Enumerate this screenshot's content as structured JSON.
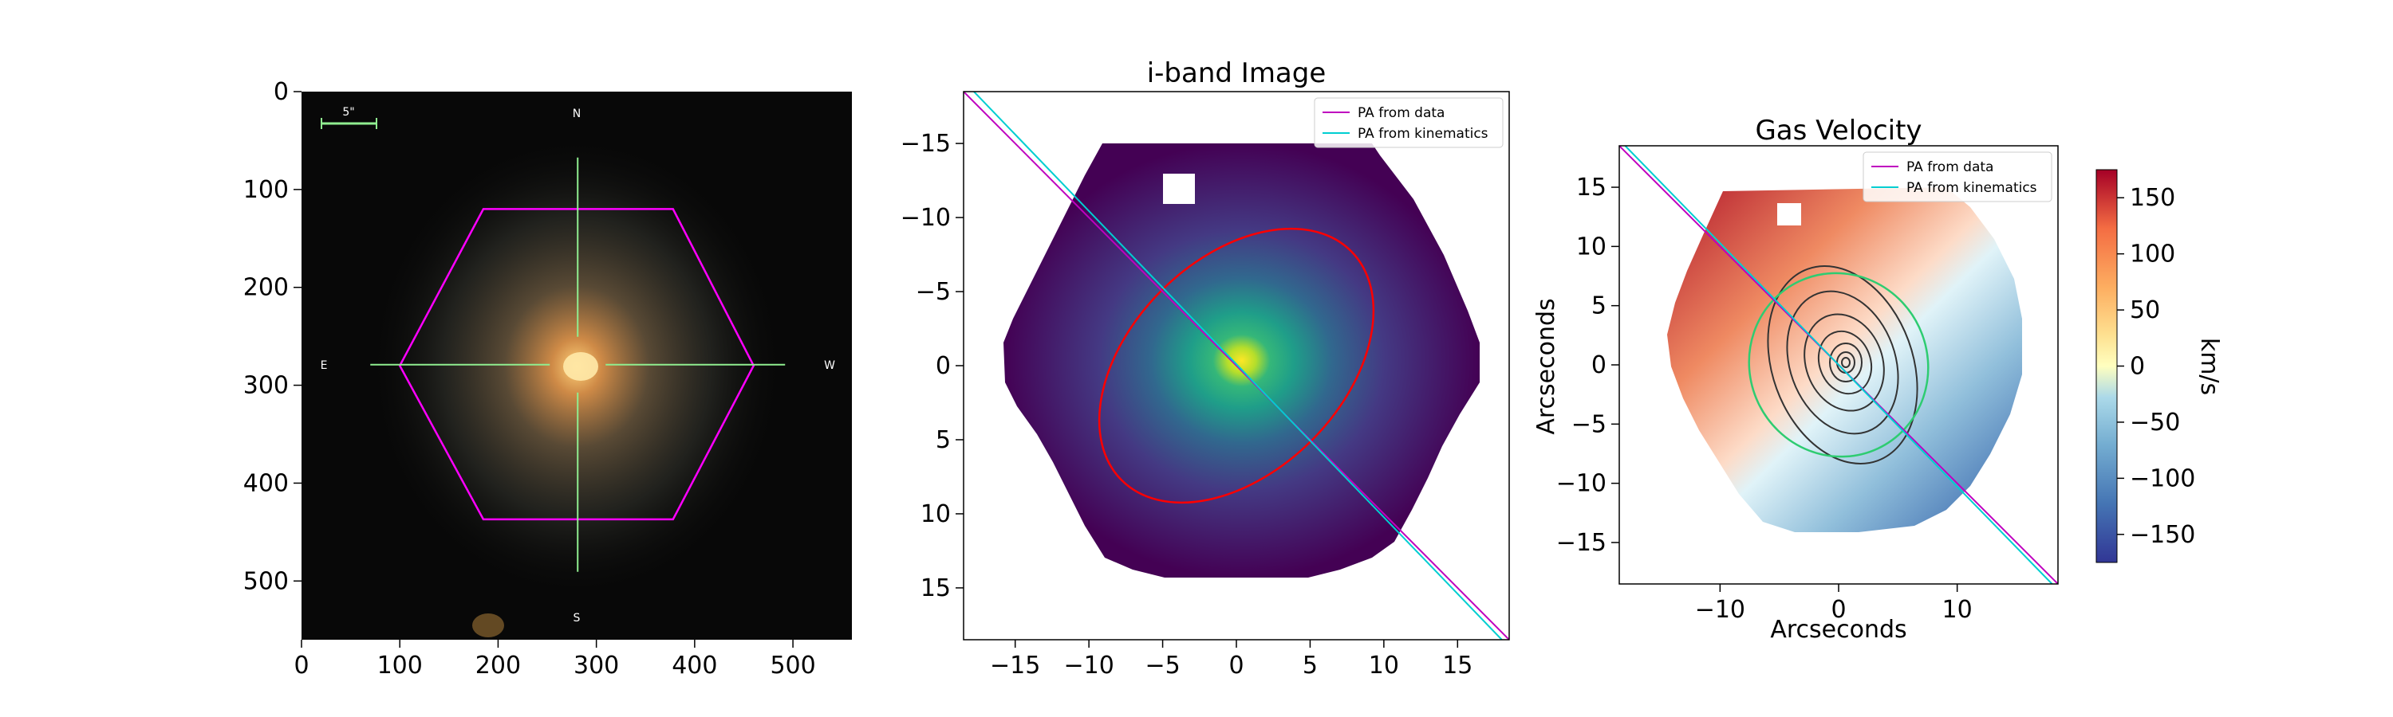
{
  "chart_data": [
    {
      "type": "image",
      "title": "",
      "xlabel": "",
      "ylabel": "",
      "xlim": [
        0,
        560
      ],
      "ylim": [
        560,
        0
      ],
      "xticks": [
        0,
        100,
        200,
        300,
        400,
        500
      ],
      "yticks": [
        0,
        100,
        200,
        300,
        400,
        500
      ],
      "scale_bar_label": "5\"",
      "compass": {
        "n": "N",
        "s": "S",
        "e": "E",
        "w": "W"
      },
      "hexagon_vertices": [
        [
          100,
          280
        ],
        [
          185,
          120
        ],
        [
          378,
          120
        ],
        [
          460,
          280
        ],
        [
          378,
          437
        ],
        [
          185,
          437
        ]
      ],
      "hexagon_color": "#ff00ff",
      "crosshair_center": [
        281,
        279
      ],
      "crosshair_color": "#90ee90"
    },
    {
      "type": "heatmap",
      "title": "i-band Image",
      "xlabel": "",
      "ylabel": "",
      "xlim": [
        -18.5,
        18.5
      ],
      "ylim": [
        -18.5,
        18.5
      ],
      "y_inverted": true,
      "xticks": [
        -15,
        -10,
        -5,
        0,
        5,
        10,
        15
      ],
      "yticks": [
        -15,
        -10,
        -5,
        0,
        5,
        10,
        15
      ],
      "colormap": "viridis",
      "ellipse": {
        "center": [
          0,
          0
        ],
        "semi_major": 11.0,
        "semi_minor": 7.2,
        "pa_deg": 45,
        "color": "#ff0000"
      },
      "lines": [
        {
          "name": "PA from data",
          "color": "#bf00bf",
          "x": [
            -18.5,
            18.5
          ],
          "y": [
            -18.5,
            18.5
          ]
        },
        {
          "name": "PA from kinematics",
          "color": "#00ced1",
          "x": [
            -17.8,
            18.0
          ],
          "y": [
            -18.5,
            18.5
          ]
        }
      ],
      "legend": {
        "loc": "upper right",
        "entries": [
          "PA from data",
          "PA from kinematics"
        ]
      }
    },
    {
      "type": "heatmap",
      "title": "Gas Velocity",
      "xlabel": "Arcseconds",
      "ylabel": "Arcseconds",
      "xlim": [
        -18.5,
        18.5
      ],
      "ylim": [
        -18.5,
        18.5
      ],
      "xticks": [
        -10,
        0,
        10
      ],
      "yticks": [
        -15,
        -10,
        -5,
        0,
        5,
        10,
        15
      ],
      "colormap": "RdYlBu_r",
      "colorbar": {
        "label": "km/s",
        "range": [
          -175,
          175
        ],
        "ticks": [
          -150,
          -100,
          -50,
          0,
          50,
          100,
          150
        ]
      },
      "ellipse": {
        "center": [
          0,
          0
        ],
        "semi_major": 7.8,
        "semi_minor": 7.5,
        "pa_deg": 10,
        "color": "#2ecc71"
      },
      "lines": [
        {
          "name": "PA from data",
          "color": "#bf00bf",
          "x": [
            -18.5,
            18.5
          ],
          "y": [
            18.5,
            -18.5
          ]
        },
        {
          "name": "PA from kinematics",
          "color": "#00ced1",
          "x": [
            -18.0,
            18.0
          ],
          "y": [
            18.5,
            -18.5
          ]
        }
      ],
      "legend": {
        "loc": "upper right",
        "entries": [
          "PA from data",
          "PA from kinematics"
        ]
      }
    }
  ]
}
